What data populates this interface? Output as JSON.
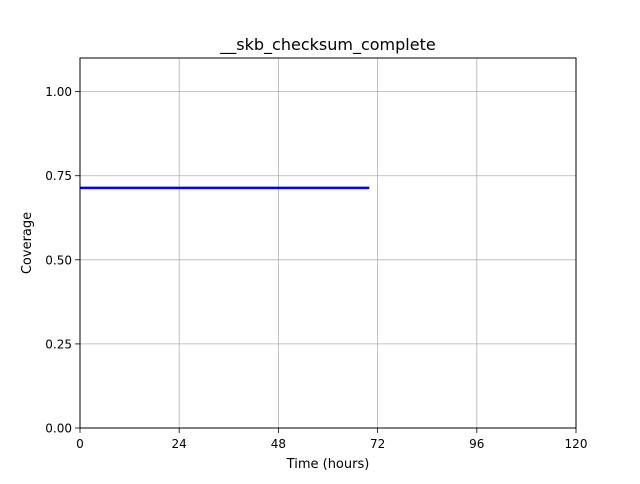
{
  "chart_data": {
    "type": "line",
    "title": "__skb_checksum_complete",
    "xlabel": "Time (hours)",
    "ylabel": "Coverage",
    "xlim": [
      0,
      120
    ],
    "ylim": [
      0,
      1.1
    ],
    "xticks": [
      0,
      24,
      48,
      72,
      96,
      120
    ],
    "xtick_labels": [
      "0",
      "24",
      "48",
      "72",
      "96",
      "120"
    ],
    "yticks": [
      0,
      0.25,
      0.5,
      0.75,
      1.0
    ],
    "ytick_labels": [
      "0.00",
      "0.25",
      "0.50",
      "0.75",
      "1.00"
    ],
    "grid": true,
    "series": [
      {
        "color": "#0000ff",
        "x": [
          0,
          70
        ],
        "y": [
          0.714,
          0.714
        ]
      }
    ]
  }
}
